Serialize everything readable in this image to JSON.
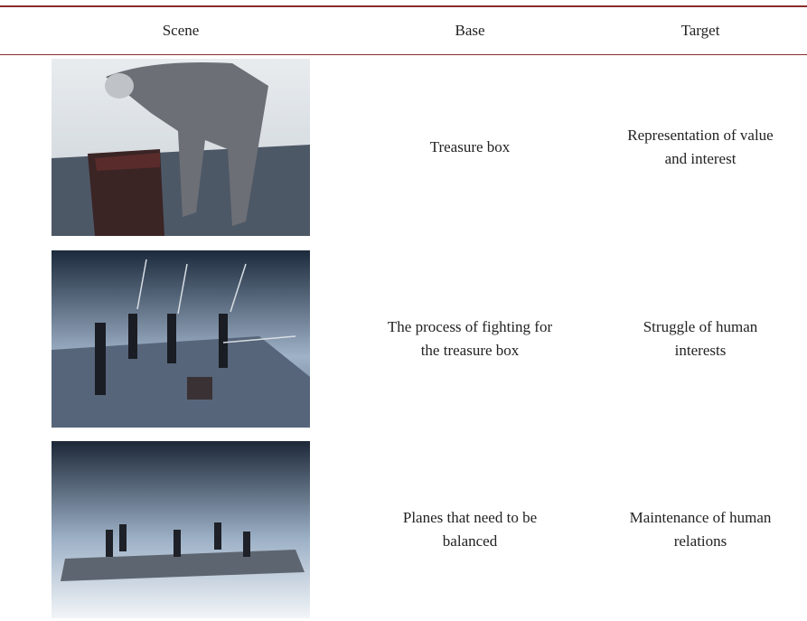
{
  "table": {
    "header": [
      "Scene",
      "Base",
      "Target"
    ],
    "rows": [
      {
        "base": [
          "Treasure box"
        ],
        "target": [
          "Representation of value",
          "and interest"
        ]
      },
      {
        "base": [
          "The process of fighting for",
          "the treasure box"
        ],
        "target": [
          "Struggle of human",
          "interests"
        ]
      },
      {
        "base": [
          "Planes that need to be",
          "balanced"
        ],
        "target": [
          "Maintenance of human",
          "relations"
        ]
      }
    ]
  }
}
